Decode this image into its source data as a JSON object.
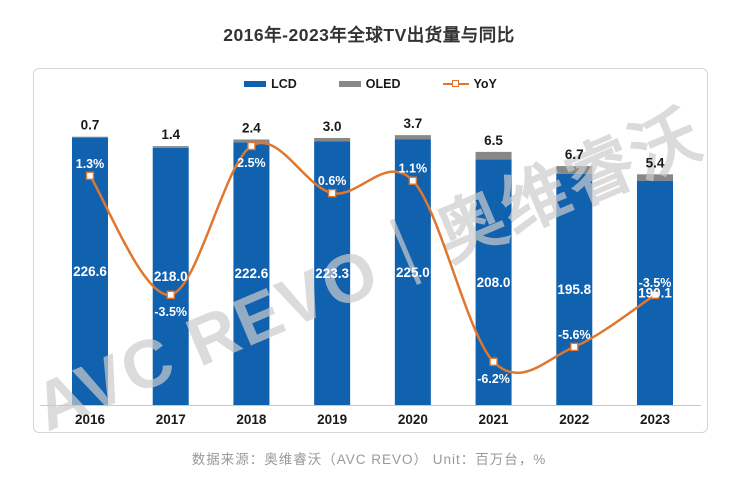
{
  "title": "2016年-2023年全球TV出货量与同比",
  "footer": "数据来源：奥维睿沃（AVC REVO）  Unit：百万台，%",
  "watermark": "AVC REVO｜奥维睿沃",
  "legend": {
    "items": [
      {
        "label": "LCD"
      },
      {
        "label": "OLED"
      },
      {
        "label": "YoY"
      }
    ]
  },
  "colors": {
    "lcd": "#1061AE",
    "oled": "#888888",
    "yoy": "#E0772E",
    "axis": "#c8c8c8",
    "bar_label": "#ffffff",
    "oled_label": "#1a1a1a",
    "year_label": "#1a1a1a",
    "watermark": "#cccccc"
  },
  "chart_data": {
    "type": "bar",
    "subtype": "stacked-bar-with-line-combo",
    "title": "2016年-2023年全球TV出货量与同比",
    "unit": "百万台，%",
    "grid": false,
    "legend_position": "top",
    "value_labels_shown": true,
    "categories": [
      "2016",
      "2017",
      "2018",
      "2019",
      "2020",
      "2021",
      "2022",
      "2023"
    ],
    "series": [
      {
        "name": "LCD",
        "type": "bar",
        "stack": true,
        "unit": "百万台",
        "values": [
          226.6,
          218.0,
          222.6,
          223.3,
          225.0,
          208.0,
          195.8,
          190.1
        ]
      },
      {
        "name": "OLED",
        "type": "bar",
        "stack": true,
        "unit": "百万台",
        "values": [
          0.7,
          1.4,
          2.4,
          3.0,
          3.7,
          6.5,
          6.7,
          5.4
        ]
      },
      {
        "name": "YoY",
        "type": "line",
        "axis": "secondary",
        "unit": "%",
        "values": [
          1.3,
          -3.5,
          2.5,
          0.6,
          1.1,
          -6.2,
          -5.6,
          -3.5
        ],
        "labels": [
          "1.3%",
          "-3.5%",
          "2.5%",
          "0.6%",
          "1.1%",
          "-6.2%",
          "-5.6%",
          "-3.5%"
        ],
        "label_positions": [
          "above",
          "below",
          "below",
          "above",
          "above",
          "below",
          "above",
          "above"
        ]
      }
    ]
  }
}
